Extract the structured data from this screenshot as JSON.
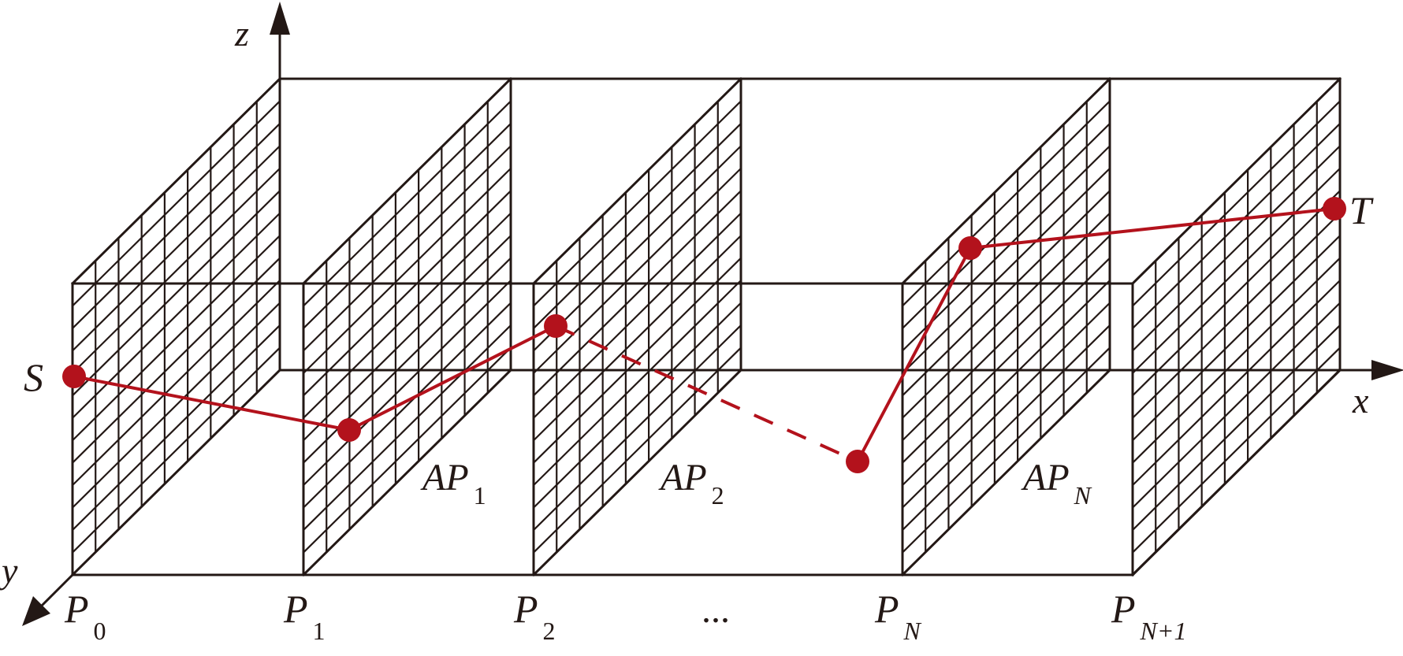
{
  "axes": {
    "x": "x",
    "y": "y",
    "z": "z"
  },
  "points": {
    "source": "S",
    "target": "T"
  },
  "planes": [
    {
      "main": "P",
      "sub": "0",
      "sub_italic": false
    },
    {
      "main": "P",
      "sub": "1",
      "sub_italic": false
    },
    {
      "main": "P",
      "sub": "2",
      "sub_italic": false
    },
    {
      "main": "P",
      "sub": "N",
      "sub_italic": true
    },
    {
      "main": "P",
      "sub": "N+1",
      "sub_italic": true
    }
  ],
  "ellipsis": "...",
  "access_planes": [
    {
      "main": "AP",
      "sub": "1",
      "sub_italic": false
    },
    {
      "main": "AP",
      "sub": "2",
      "sub_italic": false
    },
    {
      "main": "AP",
      "sub": "N",
      "sub_italic": true
    }
  ],
  "colors": {
    "line": "#231815",
    "path": "#b3121c"
  }
}
